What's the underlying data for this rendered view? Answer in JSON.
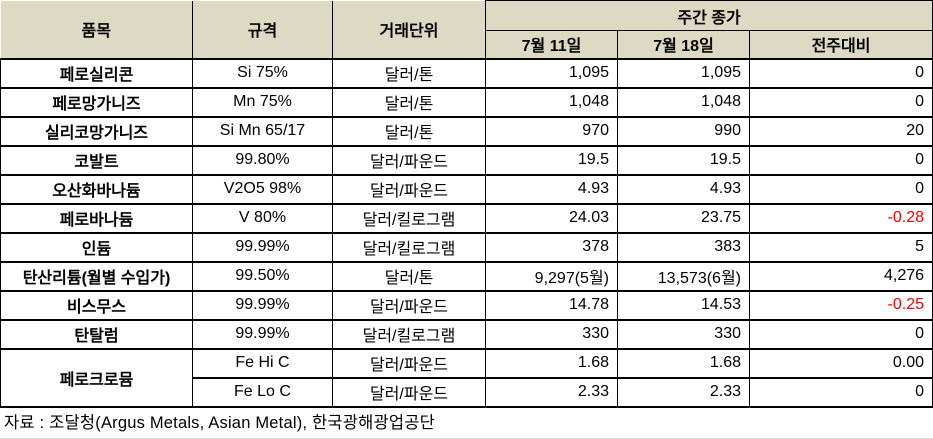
{
  "table": {
    "headers": {
      "item": "품목",
      "spec": "규격",
      "unit": "거래단위",
      "weekly_close": "주간 종가",
      "date1": "7월 11일",
      "date2": "7월 18일",
      "change": "전주대비"
    },
    "rows": [
      {
        "item": "페로실리콘",
        "spec": "Si 75%",
        "unit": "달러/톤",
        "d1": "1,095",
        "d2": "1,095",
        "change": "0",
        "negative": false
      },
      {
        "item": "페로망가니즈",
        "spec": "Mn 75%",
        "unit": "달러/톤",
        "d1": "1,048",
        "d2": "1,048",
        "change": "0",
        "negative": false
      },
      {
        "item": "실리코망가니즈",
        "spec": "Si Mn 65/17",
        "unit": "달러/톤",
        "d1": "970",
        "d2": "990",
        "change": "20",
        "negative": false
      },
      {
        "item": "코발트",
        "spec": "99.80%",
        "unit": "달러/파운드",
        "d1": "19.5",
        "d2": "19.5",
        "change": "0",
        "negative": false
      },
      {
        "item": "오산화바나듐",
        "spec": "V2O5 98%",
        "unit": "달러/파운드",
        "d1": "4.93",
        "d2": "4.93",
        "change": "0",
        "negative": false
      },
      {
        "item": "페로바나듐",
        "spec": "V 80%",
        "unit": "달러/킬로그램",
        "d1": "24.03",
        "d2": "23.75",
        "change": "-0.28",
        "negative": true
      },
      {
        "item": "인듐",
        "spec": "99.99%",
        "unit": "달러/킬로그램",
        "d1": "378",
        "d2": "383",
        "change": "5",
        "negative": false
      },
      {
        "item": "탄산리튬(월별 수입가)",
        "spec": "99.50%",
        "unit": "달러/톤",
        "d1": "9,297(5월)",
        "d2": "13,573(6월)",
        "change": "4,276",
        "negative": false
      },
      {
        "item": "비스무스",
        "spec": "99.99%",
        "unit": "달러/파운드",
        "d1": "14.78",
        "d2": "14.53",
        "change": "-0.25",
        "negative": true
      },
      {
        "item": "탄탈럼",
        "spec": "99.99%",
        "unit": "달러/킬로그램",
        "d1": "330",
        "d2": "330",
        "change": "0",
        "negative": false
      },
      {
        "item": "페로크로뮴",
        "spec": "Fe Hi C",
        "unit": "달러/파운드",
        "d1": "1.68",
        "d2": "1.68",
        "change": "0.00",
        "negative": false
      },
      {
        "item": "",
        "spec": "Fe Lo C",
        "unit": "달러/파운드",
        "d1": "2.33",
        "d2": "2.33",
        "change": "0",
        "negative": false
      }
    ]
  },
  "footer": {
    "source": "자료 : 조달청(Argus Metals, Asian Metal), 한국광해광업공단"
  },
  "colors": {
    "header_bg": "#DDD9C3",
    "border": "#000000",
    "negative_value": "#FF0000",
    "text": "#000000"
  }
}
